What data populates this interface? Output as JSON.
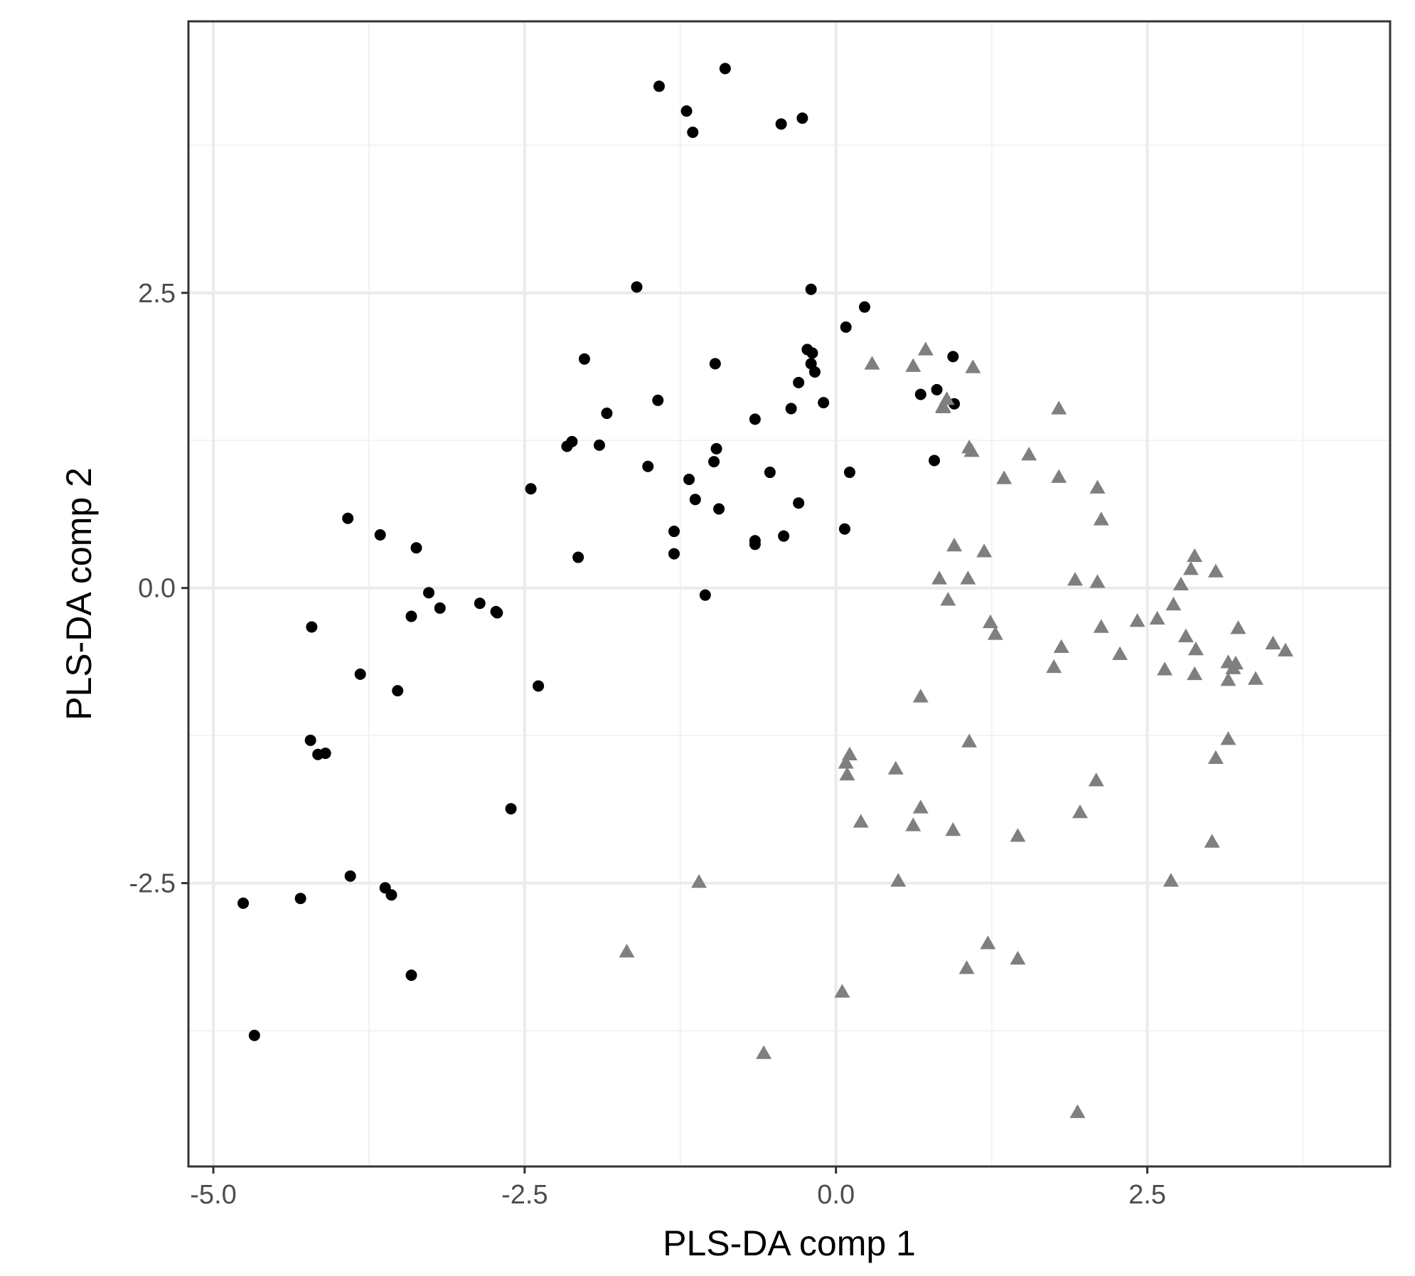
{
  "chart_data": {
    "type": "scatter",
    "title": "",
    "xlabel": "PLS-DA comp 1",
    "ylabel": "PLS-DA comp 2",
    "xlim": [
      -5.2,
      4.45
    ],
    "ylim": [
      -4.9,
      4.8
    ],
    "x_ticks": [
      -5.0,
      -2.5,
      0.0,
      2.5
    ],
    "x_tick_labels": [
      "-5.0",
      "-2.5",
      "0.0",
      "2.5"
    ],
    "y_ticks": [
      -2.5,
      0.0,
      2.5
    ],
    "y_tick_labels": [
      "-2.5",
      "0.0",
      "2.5"
    ],
    "grid": true,
    "legend": "none",
    "colors": {
      "group_circle": "#000000",
      "group_triangle": "#7f7f7f",
      "grid_major": "#ebebeb",
      "grid_minor": "#f2f2f2",
      "panel_border": "#333333",
      "tick_text": "#4d4d4d"
    },
    "series": [
      {
        "marker": "circle",
        "color": "#000000",
        "points": [
          [
            -1.42,
            4.25
          ],
          [
            -0.89,
            4.4
          ],
          [
            -1.2,
            4.04
          ],
          [
            -1.15,
            3.86
          ],
          [
            -0.44,
            3.93
          ],
          [
            -0.27,
            3.98
          ],
          [
            -1.6,
            2.55
          ],
          [
            -0.2,
            2.53
          ],
          [
            0.23,
            2.38
          ],
          [
            0.08,
            2.21
          ],
          [
            -0.23,
            2.02
          ],
          [
            -0.19,
            1.99
          ],
          [
            -0.2,
            1.9
          ],
          [
            -0.17,
            1.83
          ],
          [
            -0.3,
            1.74
          ],
          [
            -0.1,
            1.57
          ],
          [
            -0.36,
            1.52
          ],
          [
            -0.97,
            1.9
          ],
          [
            -2.02,
            1.94
          ],
          [
            -1.43,
            1.59
          ],
          [
            -1.84,
            1.48
          ],
          [
            -0.65,
            1.43
          ],
          [
            0.68,
            1.64
          ],
          [
            0.81,
            1.68
          ],
          [
            0.95,
            1.56
          ],
          [
            0.94,
            1.96
          ],
          [
            -2.12,
            1.24
          ],
          [
            -2.16,
            1.2
          ],
          [
            -1.9,
            1.21
          ],
          [
            -1.51,
            1.03
          ],
          [
            -0.96,
            1.18
          ],
          [
            -0.98,
            1.07
          ],
          [
            -1.18,
            0.92
          ],
          [
            -0.53,
            0.98
          ],
          [
            0.11,
            0.98
          ],
          [
            0.79,
            1.08
          ],
          [
            -2.45,
            0.84
          ],
          [
            -1.13,
            0.75
          ],
          [
            -0.94,
            0.67
          ],
          [
            -0.3,
            0.72
          ],
          [
            0.07,
            0.5
          ],
          [
            -1.3,
            0.48
          ],
          [
            -0.65,
            0.4
          ],
          [
            -0.65,
            0.37
          ],
          [
            -0.42,
            0.44
          ],
          [
            -1.3,
            0.29
          ],
          [
            -2.07,
            0.26
          ],
          [
            -1.05,
            -0.06
          ],
          [
            -3.92,
            0.59
          ],
          [
            -3.66,
            0.45
          ],
          [
            -3.37,
            0.34
          ],
          [
            -3.27,
            -0.04
          ],
          [
            -3.18,
            -0.17
          ],
          [
            -2.86,
            -0.13
          ],
          [
            -2.73,
            -0.2
          ],
          [
            -2.72,
            -0.21
          ],
          [
            -3.41,
            -0.24
          ],
          [
            -4.21,
            -0.33
          ],
          [
            -3.82,
            -0.73
          ],
          [
            -3.52,
            -0.87
          ],
          [
            -2.39,
            -0.83
          ],
          [
            -4.22,
            -1.29
          ],
          [
            -4.16,
            -1.41
          ],
          [
            -4.1,
            -1.4
          ],
          [
            -2.61,
            -1.87
          ],
          [
            -3.9,
            -2.44
          ],
          [
            -3.62,
            -2.54
          ],
          [
            -3.57,
            -2.6
          ],
          [
            -4.76,
            -2.67
          ],
          [
            -4.3,
            -2.63
          ],
          [
            -3.41,
            -3.28
          ],
          [
            -4.67,
            -3.79
          ]
        ]
      },
      {
        "marker": "triangle",
        "color": "#7f7f7f",
        "points": [
          [
            0.72,
            2.02
          ],
          [
            0.29,
            1.9
          ],
          [
            0.62,
            1.88
          ],
          [
            1.1,
            1.87
          ],
          [
            0.89,
            1.6
          ],
          [
            0.86,
            1.54
          ],
          [
            0.86,
            1.53
          ],
          [
            1.79,
            1.52
          ],
          [
            1.07,
            1.19
          ],
          [
            1.09,
            1.16
          ],
          [
            1.55,
            1.13
          ],
          [
            1.35,
            0.93
          ],
          [
            1.79,
            0.94
          ],
          [
            2.1,
            0.85
          ],
          [
            2.13,
            0.58
          ],
          [
            0.95,
            0.36
          ],
          [
            1.19,
            0.31
          ],
          [
            0.83,
            0.08
          ],
          [
            1.06,
            0.08
          ],
          [
            1.92,
            0.07
          ],
          [
            2.1,
            0.05
          ],
          [
            2.88,
            0.27
          ],
          [
            2.85,
            0.16
          ],
          [
            3.05,
            0.14
          ],
          [
            2.77,
            0.03
          ],
          [
            0.9,
            -0.1
          ],
          [
            2.71,
            -0.14
          ],
          [
            2.58,
            -0.26
          ],
          [
            2.42,
            -0.28
          ],
          [
            1.24,
            -0.29
          ],
          [
            1.28,
            -0.39
          ],
          [
            2.13,
            -0.33
          ],
          [
            3.23,
            -0.34
          ],
          [
            2.81,
            -0.41
          ],
          [
            1.81,
            -0.5
          ],
          [
            2.89,
            -0.52
          ],
          [
            2.28,
            -0.56
          ],
          [
            3.51,
            -0.47
          ],
          [
            3.61,
            -0.53
          ],
          [
            3.15,
            -0.63
          ],
          [
            3.21,
            -0.64
          ],
          [
            3.19,
            -0.68
          ],
          [
            1.75,
            -0.67
          ],
          [
            2.64,
            -0.69
          ],
          [
            2.88,
            -0.73
          ],
          [
            3.15,
            -0.78
          ],
          [
            3.37,
            -0.77
          ],
          [
            0.68,
            -0.92
          ],
          [
            1.07,
            -1.3
          ],
          [
            3.15,
            -1.28
          ],
          [
            0.11,
            -1.41
          ],
          [
            0.08,
            -1.48
          ],
          [
            0.09,
            -1.58
          ],
          [
            3.05,
            -1.44
          ],
          [
            0.48,
            -1.53
          ],
          [
            2.09,
            -1.63
          ],
          [
            0.68,
            -1.86
          ],
          [
            1.96,
            -1.9
          ],
          [
            0.2,
            -1.98
          ],
          [
            0.62,
            -2.01
          ],
          [
            0.94,
            -2.05
          ],
          [
            1.46,
            -2.1
          ],
          [
            3.02,
            -2.15
          ],
          [
            -1.1,
            -2.49
          ],
          [
            0.5,
            -2.48
          ],
          [
            2.69,
            -2.48
          ],
          [
            -1.68,
            -3.08
          ],
          [
            1.22,
            -3.01
          ],
          [
            1.46,
            -3.14
          ],
          [
            1.05,
            -3.22
          ],
          [
            0.05,
            -3.42
          ],
          [
            -0.58,
            -3.94
          ],
          [
            1.94,
            -4.44
          ]
        ]
      }
    ]
  }
}
